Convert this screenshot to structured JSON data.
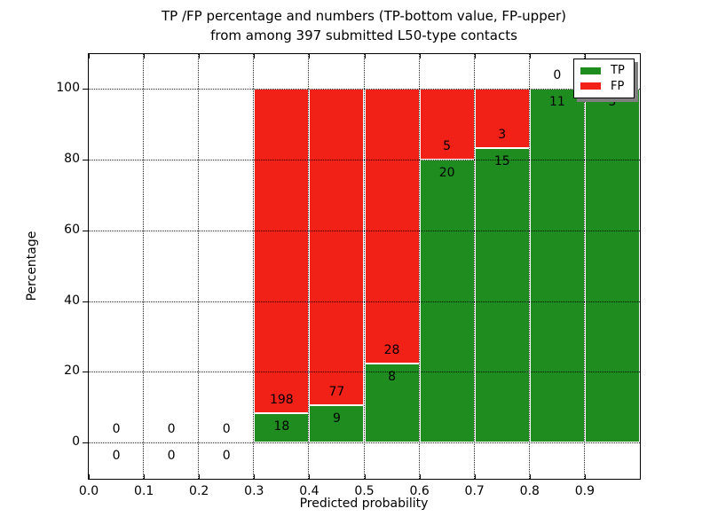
{
  "figure": {
    "title_line1": "TP /FP percentage and numbers (TP-bottom value, FP-upper)",
    "title_line2": "from among 397 submitted L50-type contacts"
  },
  "axes": {
    "xlabel": "Predicted probability",
    "ylabel": "Percentage",
    "xtick_labels": [
      "0.0",
      "0.1",
      "0.2",
      "0.3",
      "0.4",
      "0.5",
      "0.6",
      "0.7",
      "0.8",
      "0.9"
    ],
    "ytick_labels": [
      "0",
      "20",
      "40",
      "60",
      "80",
      "100"
    ],
    "ytick_values": [
      0,
      20,
      40,
      60,
      80,
      100
    ],
    "xlim": [
      0.0,
      1.0
    ],
    "ylim": [
      -10,
      110
    ],
    "grid_style": "dotted"
  },
  "legend": {
    "position": "upper-right",
    "items": [
      {
        "label": "TP",
        "color": "#1e8c1e"
      },
      {
        "label": "FP",
        "color": "#f22118"
      }
    ]
  },
  "chart_data": {
    "type": "bar",
    "stacked": true,
    "title": "TP /FP percentage and numbers (TP-bottom value, FP-upper) from among 397 submitted L50-type contacts",
    "xlabel": "Predicted probability",
    "ylabel": "Percentage",
    "total_contacts": 397,
    "bin_width": 0.1,
    "bin_starts": [
      0.0,
      0.1,
      0.2,
      0.3,
      0.4,
      0.5,
      0.6,
      0.7,
      0.8,
      0.9
    ],
    "categories": [
      "0.0-0.1",
      "0.1-0.2",
      "0.2-0.3",
      "0.3-0.4",
      "0.4-0.5",
      "0.5-0.6",
      "0.6-0.7",
      "0.7-0.8",
      "0.8-0.9",
      "0.9-1.0"
    ],
    "series": [
      {
        "name": "TP",
        "color": "#1e8c1e",
        "counts": [
          0,
          0,
          0,
          18,
          9,
          8,
          20,
          15,
          11,
          5
        ],
        "percent": [
          0,
          0,
          0,
          8.33,
          10.47,
          22.22,
          80.0,
          83.33,
          100.0,
          100.0
        ]
      },
      {
        "name": "FP",
        "color": "#f22118",
        "counts": [
          0,
          0,
          0,
          198,
          77,
          28,
          5,
          3,
          0,
          0
        ],
        "percent": [
          0,
          0,
          0,
          91.67,
          89.53,
          77.78,
          20.0,
          16.67,
          0.0,
          0.0
        ]
      }
    ],
    "annotations": [
      {
        "x": 0.05,
        "boundary_pct": 0,
        "fp_label": "0",
        "tp_label": "0"
      },
      {
        "x": 0.15,
        "boundary_pct": 0,
        "fp_label": "0",
        "tp_label": "0"
      },
      {
        "x": 0.25,
        "boundary_pct": 0,
        "fp_label": "0",
        "tp_label": "0"
      },
      {
        "x": 0.35,
        "boundary_pct": 8.33,
        "fp_label": "198",
        "tp_label": "18"
      },
      {
        "x": 0.45,
        "boundary_pct": 10.47,
        "fp_label": "77",
        "tp_label": "9"
      },
      {
        "x": 0.55,
        "boundary_pct": 22.22,
        "fp_label": "28",
        "tp_label": "8"
      },
      {
        "x": 0.65,
        "boundary_pct": 80.0,
        "fp_label": "5",
        "tp_label": "20"
      },
      {
        "x": 0.75,
        "boundary_pct": 83.33,
        "fp_label": "3",
        "tp_label": "15"
      },
      {
        "x": 0.85,
        "boundary_pct": 100.0,
        "fp_label": "0",
        "tp_label": "11"
      },
      {
        "x": 0.95,
        "boundary_pct": 100.0,
        "fp_label": null,
        "tp_label": "5"
      }
    ]
  }
}
